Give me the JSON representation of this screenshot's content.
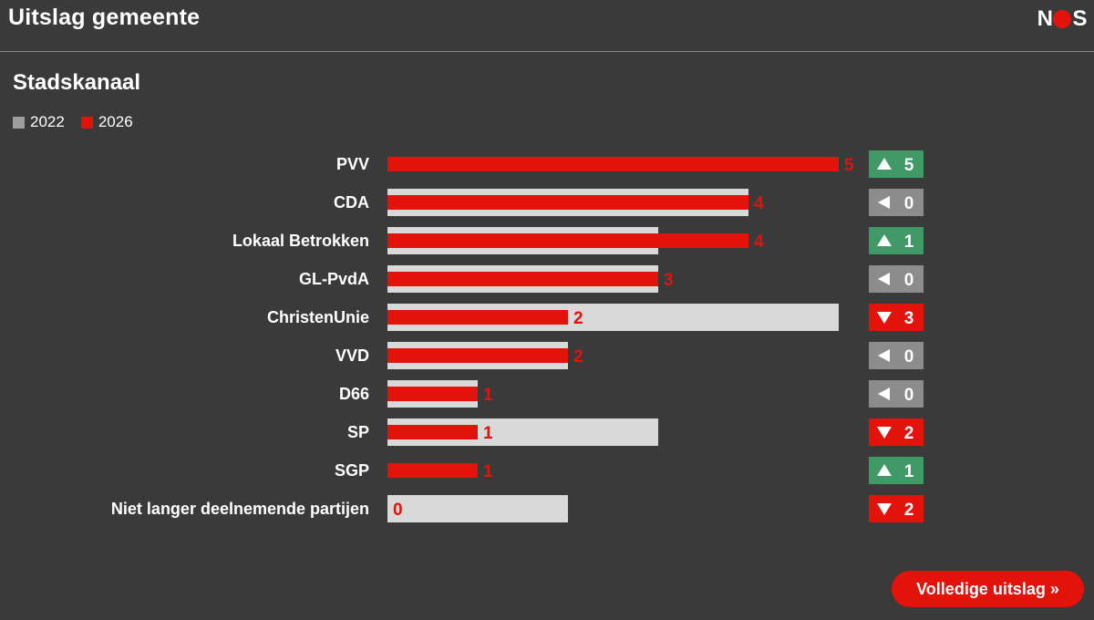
{
  "header": {
    "title": "Uitslag gemeente",
    "logo_text": [
      "N",
      "S"
    ]
  },
  "municipality": "Stadskanaal",
  "legend": [
    {
      "label": "2022",
      "color": "#9e9e9e"
    },
    {
      "label": "2026",
      "color": "#e3120b"
    }
  ],
  "colors": {
    "bar_2022": "#d9d9d9",
    "bar_2026": "#e3120b",
    "change_up": "#3f9a67",
    "change_down": "#e3120b",
    "change_same": "#8c8c8c"
  },
  "chart_data": {
    "type": "bar",
    "orientation": "horizontal",
    "categories": [
      "PVV",
      "CDA",
      "Lokaal Betrokken",
      "GL-PvdA",
      "ChristenUnie",
      "VVD",
      "D66",
      "SP",
      "SGP",
      "Niet langer deelnemende partijen"
    ],
    "series": [
      {
        "name": "2022",
        "values": [
          0,
          4,
          3,
          3,
          5,
          2,
          1,
          3,
          0,
          2
        ]
      },
      {
        "name": "2026",
        "values": [
          5,
          4,
          4,
          3,
          2,
          2,
          1,
          1,
          1,
          0
        ]
      }
    ],
    "changes": [
      {
        "direction": "up",
        "value": 5
      },
      {
        "direction": "same",
        "value": 0
      },
      {
        "direction": "up",
        "value": 1
      },
      {
        "direction": "same",
        "value": 0
      },
      {
        "direction": "down",
        "value": 3
      },
      {
        "direction": "same",
        "value": 0
      },
      {
        "direction": "same",
        "value": 0
      },
      {
        "direction": "down",
        "value": 2
      },
      {
        "direction": "up",
        "value": 1
      },
      {
        "direction": "down",
        "value": 2
      }
    ],
    "xlim": [
      0,
      5
    ]
  },
  "button": {
    "label": "Volledige uitslag »"
  }
}
